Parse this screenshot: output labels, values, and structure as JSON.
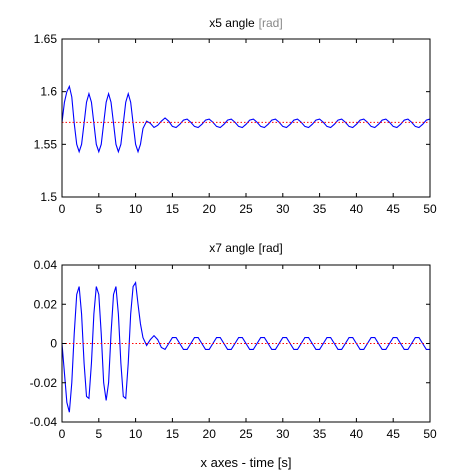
{
  "chart_data": [
    {
      "type": "line",
      "title": "x5 angle",
      "title_unit": "[rad]",
      "title_unit_color": "#888888",
      "xlabel": "",
      "ylabel": "",
      "xlim": [
        0,
        50
      ],
      "ylim": [
        1.5,
        1.65
      ],
      "xticks": [
        0,
        5,
        10,
        15,
        20,
        25,
        30,
        35,
        40,
        45,
        50
      ],
      "yticks": [
        1.5,
        1.55,
        1.6,
        1.65
      ],
      "ytick_labels": [
        "1.5",
        "1.55",
        "1.6",
        "1.65"
      ],
      "grid": false,
      "series": [
        {
          "color": "#0000ff",
          "style": "solid",
          "points": [
            [
              0,
              1.5708
            ],
            [
              0.33,
              1.59
            ],
            [
              0.66,
              1.6
            ],
            [
              1,
              1.605
            ],
            [
              1.33,
              1.595
            ],
            [
              1.66,
              1.57
            ],
            [
              2,
              1.55
            ],
            [
              2.33,
              1.543
            ],
            [
              2.66,
              1.55
            ],
            [
              3,
              1.57
            ],
            [
              3.33,
              1.59
            ],
            [
              3.66,
              1.598
            ],
            [
              4,
              1.59
            ],
            [
              4.33,
              1.57
            ],
            [
              4.66,
              1.55
            ],
            [
              5,
              1.543
            ],
            [
              5.33,
              1.55
            ],
            [
              5.66,
              1.57
            ],
            [
              6,
              1.59
            ],
            [
              6.33,
              1.598
            ],
            [
              6.66,
              1.59
            ],
            [
              7,
              1.57
            ],
            [
              7.33,
              1.55
            ],
            [
              7.66,
              1.543
            ],
            [
              8,
              1.55
            ],
            [
              8.33,
              1.57
            ],
            [
              8.66,
              1.59
            ],
            [
              9,
              1.598
            ],
            [
              9.33,
              1.59
            ],
            [
              9.66,
              1.57
            ],
            [
              10,
              1.55
            ],
            [
              10.33,
              1.543
            ],
            [
              10.66,
              1.55
            ],
            [
              11,
              1.565
            ],
            [
              11.5,
              1.572
            ],
            [
              12,
              1.57
            ],
            [
              12.5,
              1.566
            ],
            [
              13,
              1.568
            ],
            [
              13.5,
              1.572
            ],
            [
              14,
              1.575
            ],
            [
              14.5,
              1.572
            ],
            [
              15,
              1.567
            ],
            [
              15.5,
              1.566
            ],
            [
              16,
              1.569
            ],
            [
              16.5,
              1.573
            ],
            [
              17,
              1.574
            ],
            [
              17.5,
              1.571
            ],
            [
              18,
              1.567
            ],
            [
              18.5,
              1.566
            ],
            [
              19,
              1.569
            ],
            [
              19.5,
              1.573
            ],
            [
              20,
              1.574
            ],
            [
              20.5,
              1.571
            ],
            [
              21,
              1.567
            ],
            [
              21.5,
              1.566
            ],
            [
              22,
              1.569
            ],
            [
              22.5,
              1.573
            ],
            [
              23,
              1.574
            ],
            [
              23.5,
              1.571
            ],
            [
              24,
              1.567
            ],
            [
              24.5,
              1.566
            ],
            [
              25,
              1.569
            ],
            [
              25.5,
              1.573
            ],
            [
              26,
              1.574
            ],
            [
              26.5,
              1.571
            ],
            [
              27,
              1.567
            ],
            [
              27.5,
              1.566
            ],
            [
              28,
              1.569
            ],
            [
              28.5,
              1.573
            ],
            [
              29,
              1.574
            ],
            [
              29.5,
              1.571
            ],
            [
              30,
              1.567
            ],
            [
              30.5,
              1.566
            ],
            [
              31,
              1.569
            ],
            [
              31.5,
              1.573
            ],
            [
              32,
              1.574
            ],
            [
              32.5,
              1.571
            ],
            [
              33,
              1.567
            ],
            [
              33.5,
              1.566
            ],
            [
              34,
              1.569
            ],
            [
              34.5,
              1.573
            ],
            [
              35,
              1.574
            ],
            [
              35.5,
              1.571
            ],
            [
              36,
              1.567
            ],
            [
              36.5,
              1.566
            ],
            [
              37,
              1.569
            ],
            [
              37.5,
              1.573
            ],
            [
              38,
              1.574
            ],
            [
              38.5,
              1.571
            ],
            [
              39,
              1.567
            ],
            [
              39.5,
              1.566
            ],
            [
              40,
              1.569
            ],
            [
              40.5,
              1.573
            ],
            [
              41,
              1.574
            ],
            [
              41.5,
              1.571
            ],
            [
              42,
              1.567
            ],
            [
              42.5,
              1.566
            ],
            [
              43,
              1.569
            ],
            [
              43.5,
              1.573
            ],
            [
              44,
              1.574
            ],
            [
              44.5,
              1.571
            ],
            [
              45,
              1.567
            ],
            [
              45.5,
              1.566
            ],
            [
              46,
              1.569
            ],
            [
              46.5,
              1.573
            ],
            [
              47,
              1.574
            ],
            [
              47.5,
              1.571
            ],
            [
              48,
              1.567
            ],
            [
              48.5,
              1.566
            ],
            [
              49,
              1.569
            ],
            [
              49.5,
              1.573
            ],
            [
              50,
              1.574
            ]
          ]
        },
        {
          "color": "#ff0000",
          "style": "dotted",
          "points": [
            [
              0,
              1.5708
            ],
            [
              50,
              1.5708
            ]
          ]
        }
      ]
    },
    {
      "type": "line",
      "title": "x7 angle",
      "title_unit": "[rad]",
      "title_unit_color": "#000000",
      "xlabel": "x axes - time [s]",
      "ylabel": "",
      "xlim": [
        0,
        50
      ],
      "ylim": [
        -0.04,
        0.04
      ],
      "xticks": [
        0,
        5,
        10,
        15,
        20,
        25,
        30,
        35,
        40,
        45,
        50
      ],
      "yticks": [
        -0.04,
        -0.02,
        0,
        0.02,
        0.04
      ],
      "ytick_labels": [
        "-0.04",
        "-0.02",
        "0",
        "0.02",
        "0.04"
      ],
      "grid": false,
      "series": [
        {
          "color": "#0000ff",
          "style": "solid",
          "points": [
            [
              0,
              0
            ],
            [
              0.33,
              -0.015
            ],
            [
              0.66,
              -0.03
            ],
            [
              1,
              -0.035
            ],
            [
              1.33,
              -0.02
            ],
            [
              1.66,
              0.005
            ],
            [
              2,
              0.025
            ],
            [
              2.33,
              0.029
            ],
            [
              2.66,
              0.015
            ],
            [
              3,
              -0.01
            ],
            [
              3.33,
              -0.027
            ],
            [
              3.66,
              -0.028
            ],
            [
              4,
              -0.01
            ],
            [
              4.33,
              0.015
            ],
            [
              4.66,
              0.029
            ],
            [
              5,
              0.025
            ],
            [
              5.33,
              0.005
            ],
            [
              5.66,
              -0.02
            ],
            [
              6,
              -0.029
            ],
            [
              6.33,
              -0.02
            ],
            [
              6.66,
              0.005
            ],
            [
              7,
              0.025
            ],
            [
              7.33,
              0.029
            ],
            [
              7.66,
              0.015
            ],
            [
              8,
              -0.01
            ],
            [
              8.33,
              -0.027
            ],
            [
              8.66,
              -0.028
            ],
            [
              9,
              -0.01
            ],
            [
              9.33,
              0.015
            ],
            [
              9.66,
              0.029
            ],
            [
              10,
              0.031
            ],
            [
              10.33,
              0.02
            ],
            [
              10.66,
              0.01
            ],
            [
              11,
              0.003
            ],
            [
              11.5,
              -0.001
            ],
            [
              12,
              0.002
            ],
            [
              12.5,
              0.004
            ],
            [
              13,
              0.002
            ],
            [
              13.5,
              -0.002
            ],
            [
              14,
              -0.003
            ],
            [
              14.5,
              0
            ],
            [
              15,
              0.003
            ],
            [
              15.5,
              0.003
            ],
            [
              16,
              0
            ],
            [
              16.5,
              -0.003
            ],
            [
              17,
              -0.003
            ],
            [
              17.5,
              0
            ],
            [
              18,
              0.003
            ],
            [
              18.5,
              0.003
            ],
            [
              19,
              0
            ],
            [
              19.5,
              -0.003
            ],
            [
              20,
              -0.003
            ],
            [
              20.5,
              0
            ],
            [
              21,
              0.003
            ],
            [
              21.5,
              0.003
            ],
            [
              22,
              0
            ],
            [
              22.5,
              -0.003
            ],
            [
              23,
              -0.003
            ],
            [
              23.5,
              0
            ],
            [
              24,
              0.003
            ],
            [
              24.5,
              0.003
            ],
            [
              25,
              0
            ],
            [
              25.5,
              -0.003
            ],
            [
              26,
              -0.003
            ],
            [
              26.5,
              0
            ],
            [
              27,
              0.003
            ],
            [
              27.5,
              0.003
            ],
            [
              28,
              0
            ],
            [
              28.5,
              -0.003
            ],
            [
              29,
              -0.003
            ],
            [
              29.5,
              0
            ],
            [
              30,
              0.003
            ],
            [
              30.5,
              0.003
            ],
            [
              31,
              0
            ],
            [
              31.5,
              -0.003
            ],
            [
              32,
              -0.003
            ],
            [
              32.5,
              0
            ],
            [
              33,
              0.003
            ],
            [
              33.5,
              0.003
            ],
            [
              34,
              0
            ],
            [
              34.5,
              -0.003
            ],
            [
              35,
              -0.003
            ],
            [
              35.5,
              0
            ],
            [
              36,
              0.003
            ],
            [
              36.5,
              0.003
            ],
            [
              37,
              0
            ],
            [
              37.5,
              -0.003
            ],
            [
              38,
              -0.003
            ],
            [
              38.5,
              0
            ],
            [
              39,
              0.003
            ],
            [
              39.5,
              0.003
            ],
            [
              40,
              0
            ],
            [
              40.5,
              -0.003
            ],
            [
              41,
              -0.003
            ],
            [
              41.5,
              0
            ],
            [
              42,
              0.003
            ],
            [
              42.5,
              0.003
            ],
            [
              43,
              0
            ],
            [
              43.5,
              -0.003
            ],
            [
              44,
              -0.003
            ],
            [
              44.5,
              0
            ],
            [
              45,
              0.003
            ],
            [
              45.5,
              0.003
            ],
            [
              46,
              0
            ],
            [
              46.5,
              -0.003
            ],
            [
              47,
              -0.003
            ],
            [
              47.5,
              0
            ],
            [
              48,
              0.003
            ],
            [
              48.5,
              0.003
            ],
            [
              49,
              0
            ],
            [
              49.5,
              -0.003
            ],
            [
              50,
              -0.003
            ]
          ]
        },
        {
          "color": "#ff0000",
          "style": "dotted",
          "points": [
            [
              0,
              0
            ],
            [
              50,
              0
            ]
          ]
        }
      ]
    }
  ]
}
